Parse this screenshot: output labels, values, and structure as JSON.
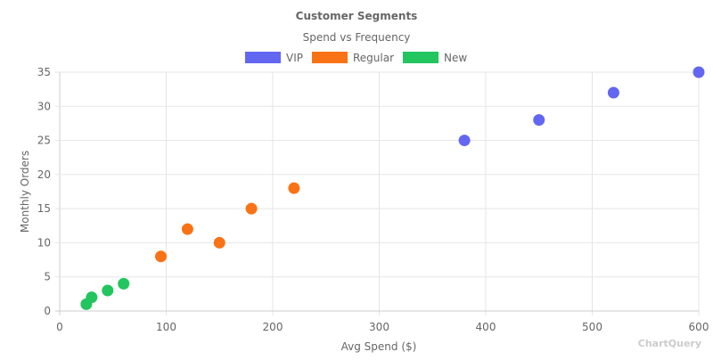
{
  "chart_data": {
    "type": "scatter",
    "title": "Customer Segments",
    "subtitle": "Spend vs Frequency",
    "xlabel": "Avg Spend ($)",
    "ylabel": "Monthly Orders",
    "xlim": [
      0,
      600
    ],
    "ylim": [
      0,
      35
    ],
    "xticks": [
      0,
      100,
      200,
      300,
      400,
      500,
      600
    ],
    "yticks": [
      0,
      5,
      10,
      15,
      20,
      25,
      30,
      35
    ],
    "grid": true,
    "legend": "top",
    "series": [
      {
        "name": "VIP",
        "color": "#6366f1",
        "points": [
          [
            380,
            25
          ],
          [
            450,
            28
          ],
          [
            520,
            32
          ],
          [
            600,
            35
          ]
        ]
      },
      {
        "name": "Regular",
        "color": "#f97316",
        "points": [
          [
            95,
            8
          ],
          [
            120,
            12
          ],
          [
            150,
            10
          ],
          [
            180,
            15
          ],
          [
            220,
            18
          ]
        ]
      },
      {
        "name": "New",
        "color": "#22c55e",
        "points": [
          [
            25,
            1
          ],
          [
            30,
            2
          ],
          [
            45,
            3
          ],
          [
            60,
            4
          ]
        ]
      }
    ]
  },
  "watermark": "ChartQuery"
}
